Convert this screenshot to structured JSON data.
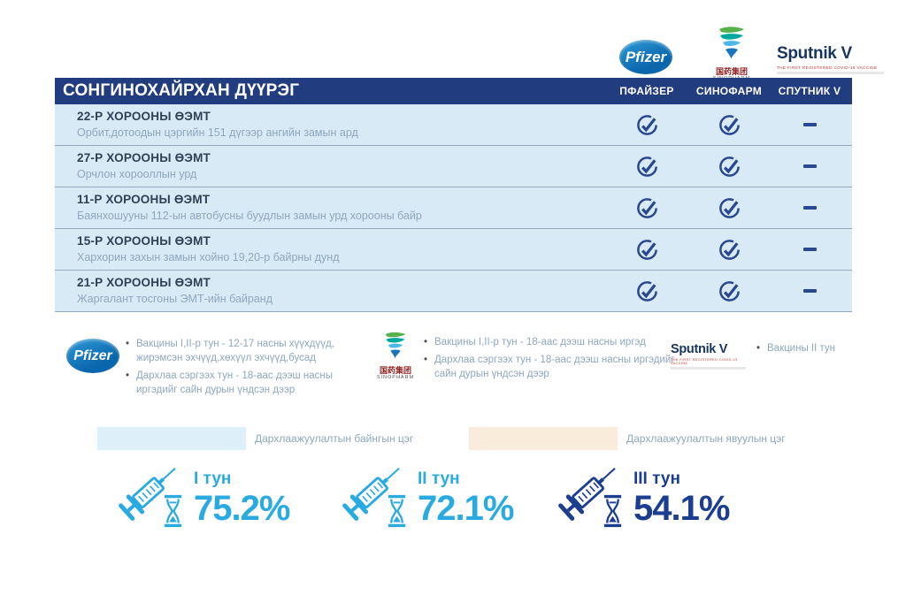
{
  "colors": {
    "navy": "#223C80",
    "check": "#2A4890",
    "row_bg": "#D8EAF6",
    "row_title": "#2E4257",
    "muted": "#8EA7C0",
    "cyan": "#29ABE2",
    "stat_navy": "#1C3E91"
  },
  "header": {
    "logos": {
      "pfizer_label": "Pfizer",
      "sinopharm_cn": "国药集团",
      "sinopharm_en": "SINOPHARM",
      "sputnik_label": "Sputnik V",
      "sputnik_tagline": "THE FIRST REGISTERED COVID-19 VACCINE"
    }
  },
  "table": {
    "title": "СОНГИНОХАЙРХАН ДҮҮРЭГ",
    "columns": [
      "ПФАЙЗЕР",
      "СИНОФАРМ",
      "СПУТНИК V"
    ],
    "rows": [
      {
        "title": "22-Р ХОРООНЫ ӨЭМТ",
        "subtitle": "Орбит,дотоодын цэргийн 151 дүгээр ангийн замын ард",
        "availability": [
          true,
          true,
          false
        ]
      },
      {
        "title": "27-Р ХОРООНЫ ӨЭМТ",
        "subtitle": "Орчлон хорооллын урд",
        "availability": [
          true,
          true,
          false
        ]
      },
      {
        "title": "11-Р ХОРООНЫ ӨЭМТ",
        "subtitle": "Баянхошууны 112-ын автобусны буудлын замын урд хорооны байр",
        "availability": [
          true,
          true,
          false
        ]
      },
      {
        "title": "15-Р ХОРООНЫ ӨЭМТ",
        "subtitle": "Хархорин захын замын хойно 19,20-р байрны дунд",
        "availability": [
          true,
          true,
          false
        ]
      },
      {
        "title": "21-Р ХОРООНЫ ӨЭМТ",
        "subtitle": "Жаргалант тосгоны ЭМТ-ийн байранд",
        "availability": [
          true,
          true,
          false
        ]
      }
    ]
  },
  "vaccine_notes": {
    "pfizer": [
      "Вакцины I,II-р тун - 12-17 насны хүүхдүүд, жирэмсэн эхчүүд,хөхүүл эхчүүд,бусад",
      "Дархлаа сэргээх тун - 18-аас дээш насны иргэдийг сайн дурын үндсэн дээр"
    ],
    "sinopharm": [
      "Вакцины I,II-р тун - 18-аас дээш насны иргэд",
      "Дархлаа сэргээх тун - 18-аас дээш насны иргэдийг сайн дурын үндсэн дээр"
    ],
    "sputnik": [
      "Вакцины II тун"
    ]
  },
  "point_types": [
    {
      "label": "Дархлаажуулалтын байнгын цэг",
      "color": "#DDEFF9"
    },
    {
      "label": "Дархлаажуулалтын явуулын цэг",
      "color": "#FAECDA"
    }
  ],
  "dose_stats": [
    {
      "label": "I тун",
      "value": "75.2%",
      "color": "#29ABE2"
    },
    {
      "label": "II тун",
      "value": "72.1%",
      "color": "#29ABE2"
    },
    {
      "label": "III тун",
      "value": "54.1%",
      "color": "#1C3E91"
    }
  ]
}
